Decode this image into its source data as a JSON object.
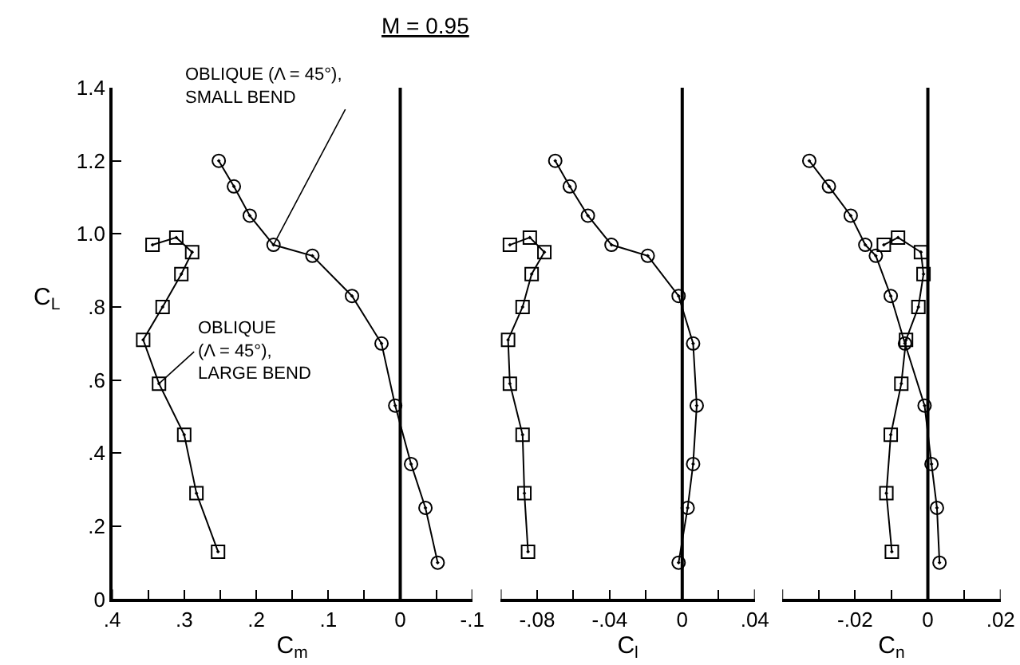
{
  "chart_data": [
    {
      "type": "line",
      "title": "M = 0.95",
      "xlabel": "C$_{m}$",
      "ylabel": "C$_{L}$",
      "xlim": [
        0.4,
        -0.1
      ],
      "ylim": [
        0,
        1.4
      ],
      "xticks": [
        {
          "value": 0.4,
          "label": ".4"
        },
        {
          "value": 0.35,
          "label": null
        },
        {
          "value": 0.3,
          "label": ".3"
        },
        {
          "value": 0.25,
          "label": null
        },
        {
          "value": 0.2,
          "label": ".2"
        },
        {
          "value": 0.15,
          "label": null
        },
        {
          "value": 0.1,
          "label": ".1"
        },
        {
          "value": 0.05,
          "label": null
        },
        0,
        {
          "value": -0.05,
          "label": null
        },
        {
          "value": -0.1,
          "label": "-.1"
        }
      ],
      "yticks": [
        0,
        {
          "value": 0.2,
          "label": ".2"
        },
        {
          "value": 0.4,
          "label": ".4"
        },
        {
          "value": 0.6,
          "label": ".6"
        },
        {
          "value": 0.8,
          "label": ".8"
        },
        {
          "value": 1.0,
          "label": "1.0"
        },
        {
          "value": 1.2,
          "label": "1.2"
        },
        {
          "value": 1.4,
          "label": "1.4"
        }
      ],
      "ref_lines": [
        {
          "axis": "x",
          "value": 0,
          "color": "#000000"
        }
      ],
      "series": [
        {
          "name": "OBLIQUE (Λ = 45°),\nSMALL BEND",
          "color": "#000000",
          "marker": "circle",
          "x": [
            0.252,
            0.231,
            0.209,
            0.176,
            0.122,
            0.067,
            0.026,
            0.007,
            -0.015,
            -0.035,
            -0.052
          ],
          "values": [
            1.2,
            1.13,
            1.05,
            0.97,
            0.94,
            0.83,
            0.7,
            0.53,
            0.37,
            0.25,
            0.1
          ]
        },
        {
          "name": "OBLIQUE\n(Λ = 45°),\nLARGE BEND",
          "color": "#000000",
          "marker": "square",
          "x": [
            0.344,
            0.311,
            0.289,
            0.304,
            0.33,
            0.357,
            0.335,
            0.3,
            0.283,
            0.253
          ],
          "values": [
            0.97,
            0.99,
            0.95,
            0.89,
            0.8,
            0.71,
            0.59,
            0.45,
            0.29,
            0.13
          ]
        }
      ]
    },
    {
      "type": "line",
      "xlabel": "C$_{l}$",
      "tick_labels": "x",
      "xlim": [
        -0.1,
        0.04
      ],
      "ylim": [
        0,
        1.4
      ],
      "xticks": [
        {
          "value": -0.1,
          "label": null
        },
        {
          "value": -0.08,
          "label": "-.08"
        },
        {
          "value": -0.06,
          "label": null
        },
        {
          "value": -0.04,
          "label": "-.04"
        },
        {
          "value": -0.02,
          "label": null
        },
        0,
        {
          "value": 0.02,
          "label": null
        },
        {
          "value": 0.04,
          "label": ".04"
        }
      ],
      "ref_lines": [
        {
          "axis": "x",
          "value": 0,
          "color": "#000000"
        }
      ],
      "series": [
        {
          "color": "#000000",
          "marker": "circle",
          "x": [
            -0.07,
            -0.062,
            -0.052,
            -0.039,
            -0.019,
            -0.002,
            0.006,
            0.008,
            0.006,
            0.003,
            -0.002
          ],
          "values": [
            1.2,
            1.13,
            1.05,
            0.97,
            0.94,
            0.83,
            0.7,
            0.53,
            0.37,
            0.25,
            0.1
          ]
        },
        {
          "color": "#000000",
          "marker": "square",
          "x": [
            -0.095,
            -0.084,
            -0.076,
            -0.083,
            -0.088,
            -0.096,
            -0.095,
            -0.088,
            -0.087,
            -0.085
          ],
          "values": [
            0.97,
            0.99,
            0.95,
            0.89,
            0.8,
            0.71,
            0.59,
            0.45,
            0.29,
            0.13
          ]
        }
      ]
    },
    {
      "type": "line",
      "xlabel": "C$_{n}$",
      "tick_labels": "x",
      "xlim": [
        -0.04,
        0.02
      ],
      "ylim": [
        0,
        1.4
      ],
      "xticks": [
        {
          "value": -0.04,
          "label": null
        },
        {
          "value": -0.03,
          "label": null
        },
        {
          "value": -0.02,
          "label": "-.02"
        },
        {
          "value": -0.01,
          "label": null
        },
        0,
        {
          "value": 0.01,
          "label": null
        },
        {
          "value": 0.02,
          "label": ".02"
        }
      ],
      "ref_lines": [
        {
          "axis": "x",
          "value": 0,
          "color": "#000000"
        }
      ],
      "series": [
        {
          "color": "#000000",
          "marker": "circle",
          "x": [
            -0.0326,
            -0.0272,
            -0.0212,
            -0.0172,
            -0.0143,
            -0.0102,
            -0.0063,
            -0.0009,
            0.001,
            0.0025,
            0.0032
          ],
          "values": [
            1.2,
            1.13,
            1.05,
            0.97,
            0.94,
            0.83,
            0.7,
            0.53,
            0.37,
            0.25,
            0.1
          ]
        },
        {
          "color": "#000000",
          "marker": "square",
          "x": [
            -0.0121,
            -0.0082,
            -0.0019,
            -0.0012,
            -0.0026,
            -0.006,
            -0.0073,
            -0.0102,
            -0.0114,
            -0.0099
          ],
          "values": [
            0.97,
            0.99,
            0.95,
            0.89,
            0.8,
            0.71,
            0.59,
            0.45,
            0.29,
            0.13
          ]
        }
      ]
    }
  ]
}
